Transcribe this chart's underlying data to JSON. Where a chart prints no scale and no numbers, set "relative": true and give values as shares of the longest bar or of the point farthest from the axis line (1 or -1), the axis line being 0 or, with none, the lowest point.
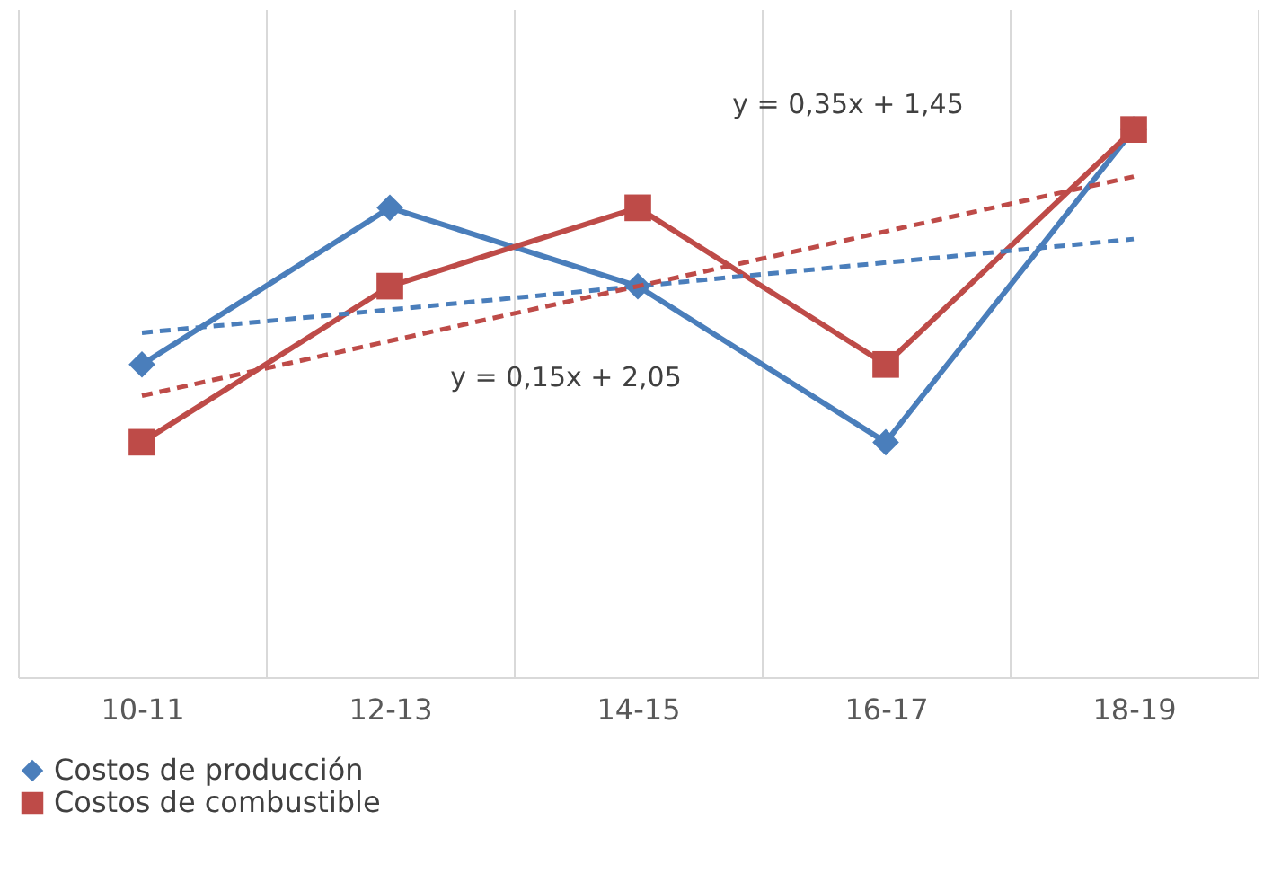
{
  "chart_data": {
    "type": "line",
    "relative": true,
    "categories": [
      "10-11",
      "12-13",
      "14-15",
      "16-17",
      "18-19"
    ],
    "series": [
      {
        "name": "Costos de producción",
        "color": "#4a7ebb",
        "marker": "diamond",
        "line_style": "solid",
        "values": [
          0.571,
          0.857,
          0.714,
          0.429,
          1
        ]
      },
      {
        "name": "Costos de combustible",
        "color": "#be4b48",
        "marker": "square",
        "line_style": "solid",
        "values": [
          0.429,
          0.714,
          0.857,
          0.571,
          1
        ]
      },
      {
        "color": "#4a7ebb",
        "marker": "none",
        "line_style": "dashed",
        "values": [
          0.629,
          0.671,
          0.714,
          0.757,
          0.8
        ]
      },
      {
        "color": "#be4b48",
        "marker": "none",
        "line_style": "dashed",
        "values": [
          0.514,
          0.614,
          0.714,
          0.814,
          0.914
        ]
      }
    ],
    "annotations": [
      "y = 0,35x + 1,45",
      "y = 0,15x + 2,05"
    ],
    "grid": "x",
    "legend": "bottom"
  }
}
